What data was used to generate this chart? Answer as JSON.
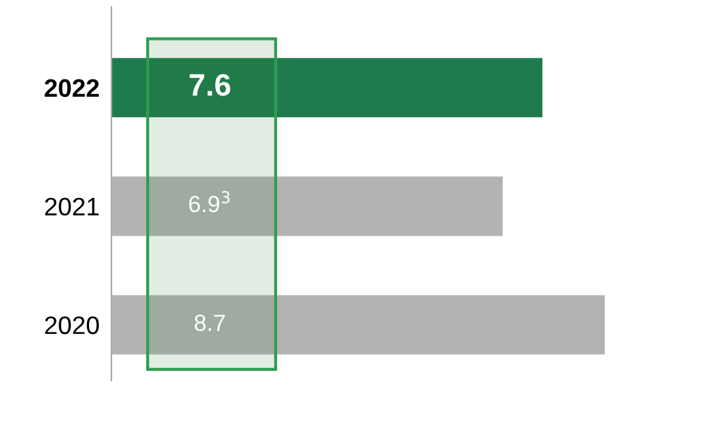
{
  "chart_data": {
    "type": "bar",
    "orientation": "horizontal",
    "categories": [
      "2022",
      "2021",
      "2020"
    ],
    "values": [
      7.6,
      6.9,
      8.7
    ],
    "colors": [
      "#1f7b4d",
      "#b3b3b3",
      "#b3b3b3"
    ],
    "value_labels": [
      "7.6",
      "6.9$^{3}$",
      "8.7"
    ],
    "tick_labels": "y",
    "grid": false,
    "legend": false
  }
}
